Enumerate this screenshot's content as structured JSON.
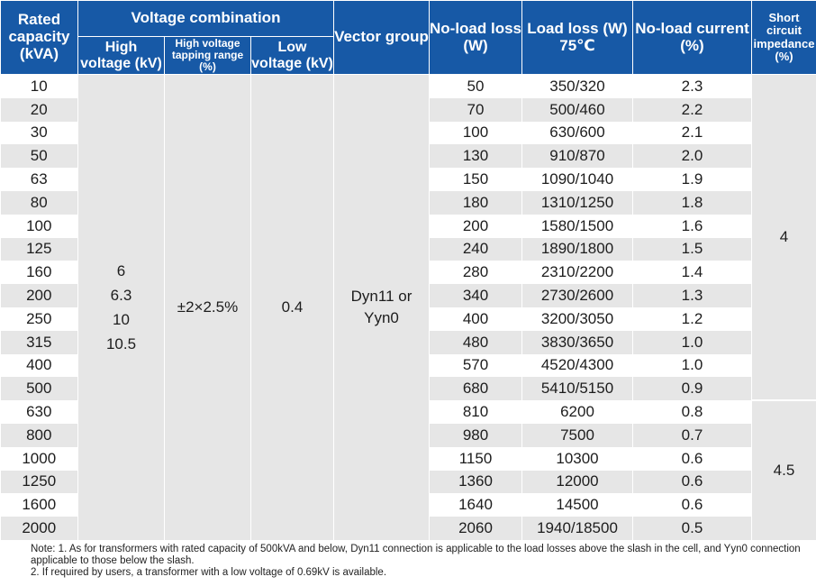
{
  "headers": {
    "rated_capacity": "Rated capacity (kVA)",
    "voltage_combination": "Voltage combination",
    "high_voltage": "High voltage (kV)",
    "tapping_range": "High voltage tapping range (%)",
    "low_voltage": "Low voltage (kV)",
    "vector_group": "Vector group",
    "no_load_loss": "No-load loss (W)",
    "load_loss": "Load loss (W) 75℃",
    "no_load_current": "No-load current (%)",
    "impedance": "Short circuit impedance (%)"
  },
  "merged": {
    "hv_1": "6",
    "hv_2": "6.3",
    "hv_3": "10",
    "hv_4": "10.5",
    "tapping": "±2×2.5%",
    "lv": "0.4",
    "vector_1": "Dyn11 or",
    "vector_2": "Yyn0",
    "impedance_1": "4",
    "impedance_2": "4.5"
  },
  "rows": [
    {
      "capacity": "10",
      "no_load_loss": "50",
      "load_loss": "350/320",
      "no_load_current": "2.3"
    },
    {
      "capacity": "20",
      "no_load_loss": "70",
      "load_loss": "500/460",
      "no_load_current": "2.2"
    },
    {
      "capacity": "30",
      "no_load_loss": "100",
      "load_loss": "630/600",
      "no_load_current": "2.1"
    },
    {
      "capacity": "50",
      "no_load_loss": "130",
      "load_loss": "910/870",
      "no_load_current": "2.0"
    },
    {
      "capacity": "63",
      "no_load_loss": "150",
      "load_loss": "1090/1040",
      "no_load_current": "1.9"
    },
    {
      "capacity": "80",
      "no_load_loss": "180",
      "load_loss": "1310/1250",
      "no_load_current": "1.8"
    },
    {
      "capacity": "100",
      "no_load_loss": "200",
      "load_loss": "1580/1500",
      "no_load_current": "1.6"
    },
    {
      "capacity": "125",
      "no_load_loss": "240",
      "load_loss": "1890/1800",
      "no_load_current": "1.5"
    },
    {
      "capacity": "160",
      "no_load_loss": "280",
      "load_loss": "2310/2200",
      "no_load_current": "1.4"
    },
    {
      "capacity": "200",
      "no_load_loss": "340",
      "load_loss": "2730/2600",
      "no_load_current": "1.3"
    },
    {
      "capacity": "250",
      "no_load_loss": "400",
      "load_loss": "3200/3050",
      "no_load_current": "1.2"
    },
    {
      "capacity": "315",
      "no_load_loss": "480",
      "load_loss": "3830/3650",
      "no_load_current": "1.0"
    },
    {
      "capacity": "400",
      "no_load_loss": "570",
      "load_loss": "4520/4300",
      "no_load_current": "1.0"
    },
    {
      "capacity": "500",
      "no_load_loss": "680",
      "load_loss": "5410/5150",
      "no_load_current": "0.9"
    },
    {
      "capacity": "630",
      "no_load_loss": "810",
      "load_loss": "6200",
      "no_load_current": "0.8"
    },
    {
      "capacity": "800",
      "no_load_loss": "980",
      "load_loss": "7500",
      "no_load_current": "0.7"
    },
    {
      "capacity": "1000",
      "no_load_loss": "1150",
      "load_loss": "10300",
      "no_load_current": "0.6"
    },
    {
      "capacity": "1250",
      "no_load_loss": "1360",
      "load_loss": "12000",
      "no_load_current": "0.6"
    },
    {
      "capacity": "1600",
      "no_load_loss": "1640",
      "load_loss": "14500",
      "no_load_current": "0.6"
    },
    {
      "capacity": "2000",
      "no_load_loss": "2060",
      "load_loss": "1940/18500",
      "no_load_current": "0.5"
    }
  ],
  "notes": {
    "line1": "Note: 1. As for transformers with rated capacity of 500kVA and below, Dyn11 connection is applicable to the load losses above the slash in the cell, and Yyn0 connection applicable to those below the slash.",
    "line2": "2. If required by users, a transformer with a low voltage of 0.69kV is available."
  },
  "colors": {
    "header_bg": "#1759a6",
    "stripe": "#e6e6e6"
  }
}
